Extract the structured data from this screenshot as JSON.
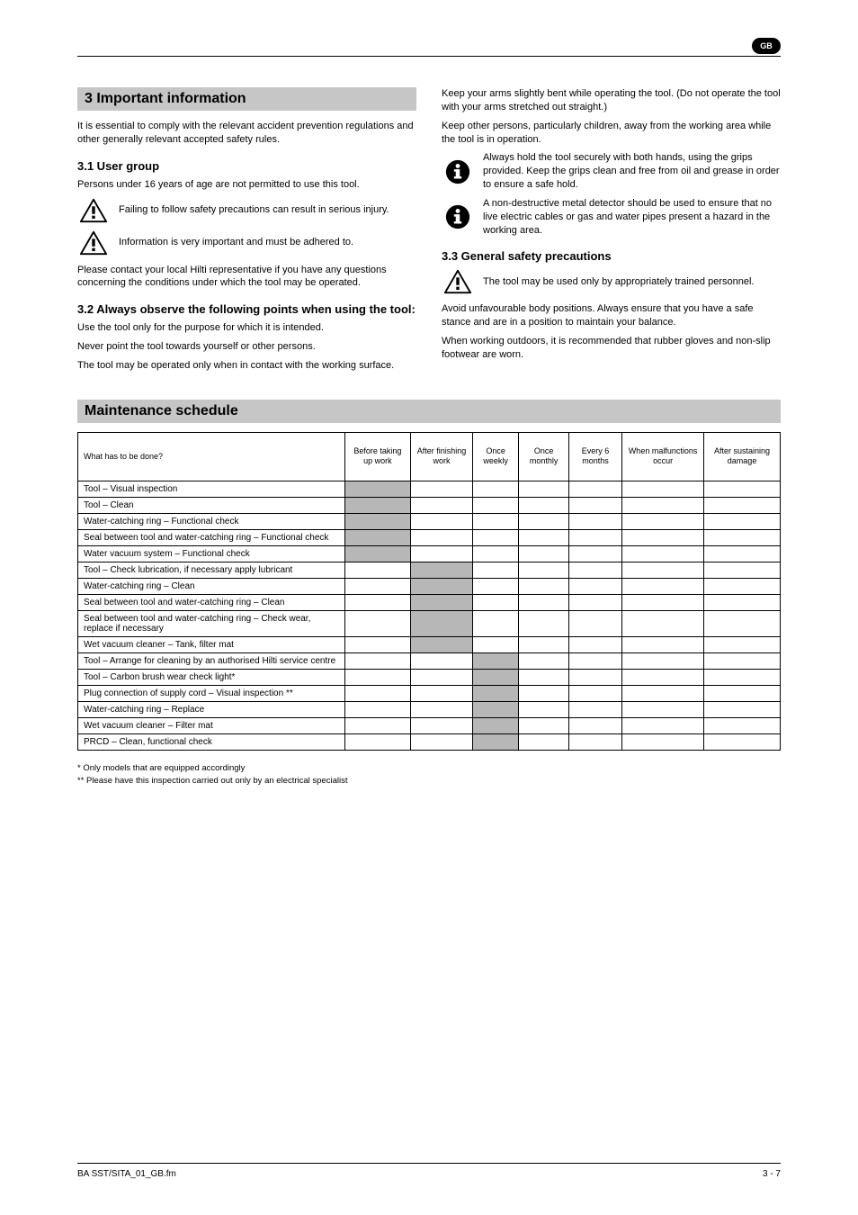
{
  "meta": {
    "lang_badge": "GB",
    "footer_left": "BA SST/SITA_01_GB.fm",
    "footer_right": "3 - 7"
  },
  "left": {
    "bar": "3 Important information",
    "p1": "It is essential to comply with the relevant accident prevention regulations and other generally relevant accepted safety rules.",
    "h1": "3.1 User group",
    "p2": "Persons under 16 years of age are not permitted to use this tool.",
    "warn1": "Failing to follow safety precautions can result in serious injury.",
    "warn2": "Information is very important and must be adhered to.",
    "p3": "Please contact your local Hilti representative if you have any questions concerning the conditions under which the tool may be operated.",
    "h2": "3.2 Always observe the following points when using the tool:",
    "p4": "Use the tool only for the purpose for which it is intended.",
    "p5": "Never point the tool towards yourself or other persons.",
    "p6": "The tool may be operated only when in contact with the working surface."
  },
  "right": {
    "p1": "Keep your arms slightly bent while operating the tool. (Do not operate the tool with your arms stretched out straight.)",
    "p2": "Keep other persons, particularly children, away from the working area while the tool is in operation.",
    "info1": "Always hold the tool securely with both hands, using the grips provided. Keep the grips clean and free from oil and grease in order to ensure a safe hold.",
    "info2": "A non-destructive metal detector should be used to ensure that no live electric cables or gas and water pipes present a hazard in the working area.",
    "h1": "3.3 General safety precautions",
    "warn1": "The tool may be used only by appropriately trained personnel.",
    "p3": "Avoid unfavourable body positions. Always ensure that you have a safe stance and are in a position to maintain your balance.",
    "p4": "When working outdoors, it is recommended that rubber gloves and non-slip footwear are worn."
  },
  "maintenance": {
    "bar": "Maintenance schedule",
    "columns": [
      "What has to be done?",
      "Before taking up work",
      "After finishing work",
      "Once weekly",
      "Once monthly",
      "Every 6 months",
      "When malfunctions occur",
      "After sustaining damage"
    ],
    "rows": [
      {
        "desc": "Tool – Visual inspection",
        "shade": 0
      },
      {
        "desc": "Tool – Clean",
        "shade": 0
      },
      {
        "desc": "Water-catching ring – Functional check",
        "shade": 0
      },
      {
        "desc": "Seal between tool and water-catching ring – Functional check",
        "shade": 0
      },
      {
        "desc": "Water vacuum system – Functional check",
        "shade": 0
      },
      {
        "desc": "Tool – Check lubrication, if necessary apply lubricant",
        "shade": 1
      },
      {
        "desc": "Water-catching ring – Clean",
        "shade": 1
      },
      {
        "desc": "Seal between tool and water-catching ring – Clean",
        "shade": 1
      },
      {
        "desc": "Seal between tool and water-catching ring – Check wear, replace if necessary",
        "shade": 1
      },
      {
        "desc": "Wet vacuum cleaner – Tank, filter mat",
        "shade": 1
      },
      {
        "desc": "Tool – Arrange for cleaning by an authorised Hilti service centre",
        "shade": 2
      },
      {
        "desc": "Tool – Carbon brush wear check light*",
        "shade": 2
      },
      {
        "desc": "Plug connection of supply cord – Visual inspection **",
        "shade": 2
      },
      {
        "desc": "Water-catching ring – Replace",
        "shade": 2
      },
      {
        "desc": "Wet vacuum cleaner – Filter mat",
        "shade": 2
      },
      {
        "desc": "PRCD – Clean, functional check",
        "shade": 2
      }
    ],
    "footnote1": "* Only models that are equipped accordingly",
    "footnote2": "** Please have this inspection carried out only by an electrical specialist"
  }
}
